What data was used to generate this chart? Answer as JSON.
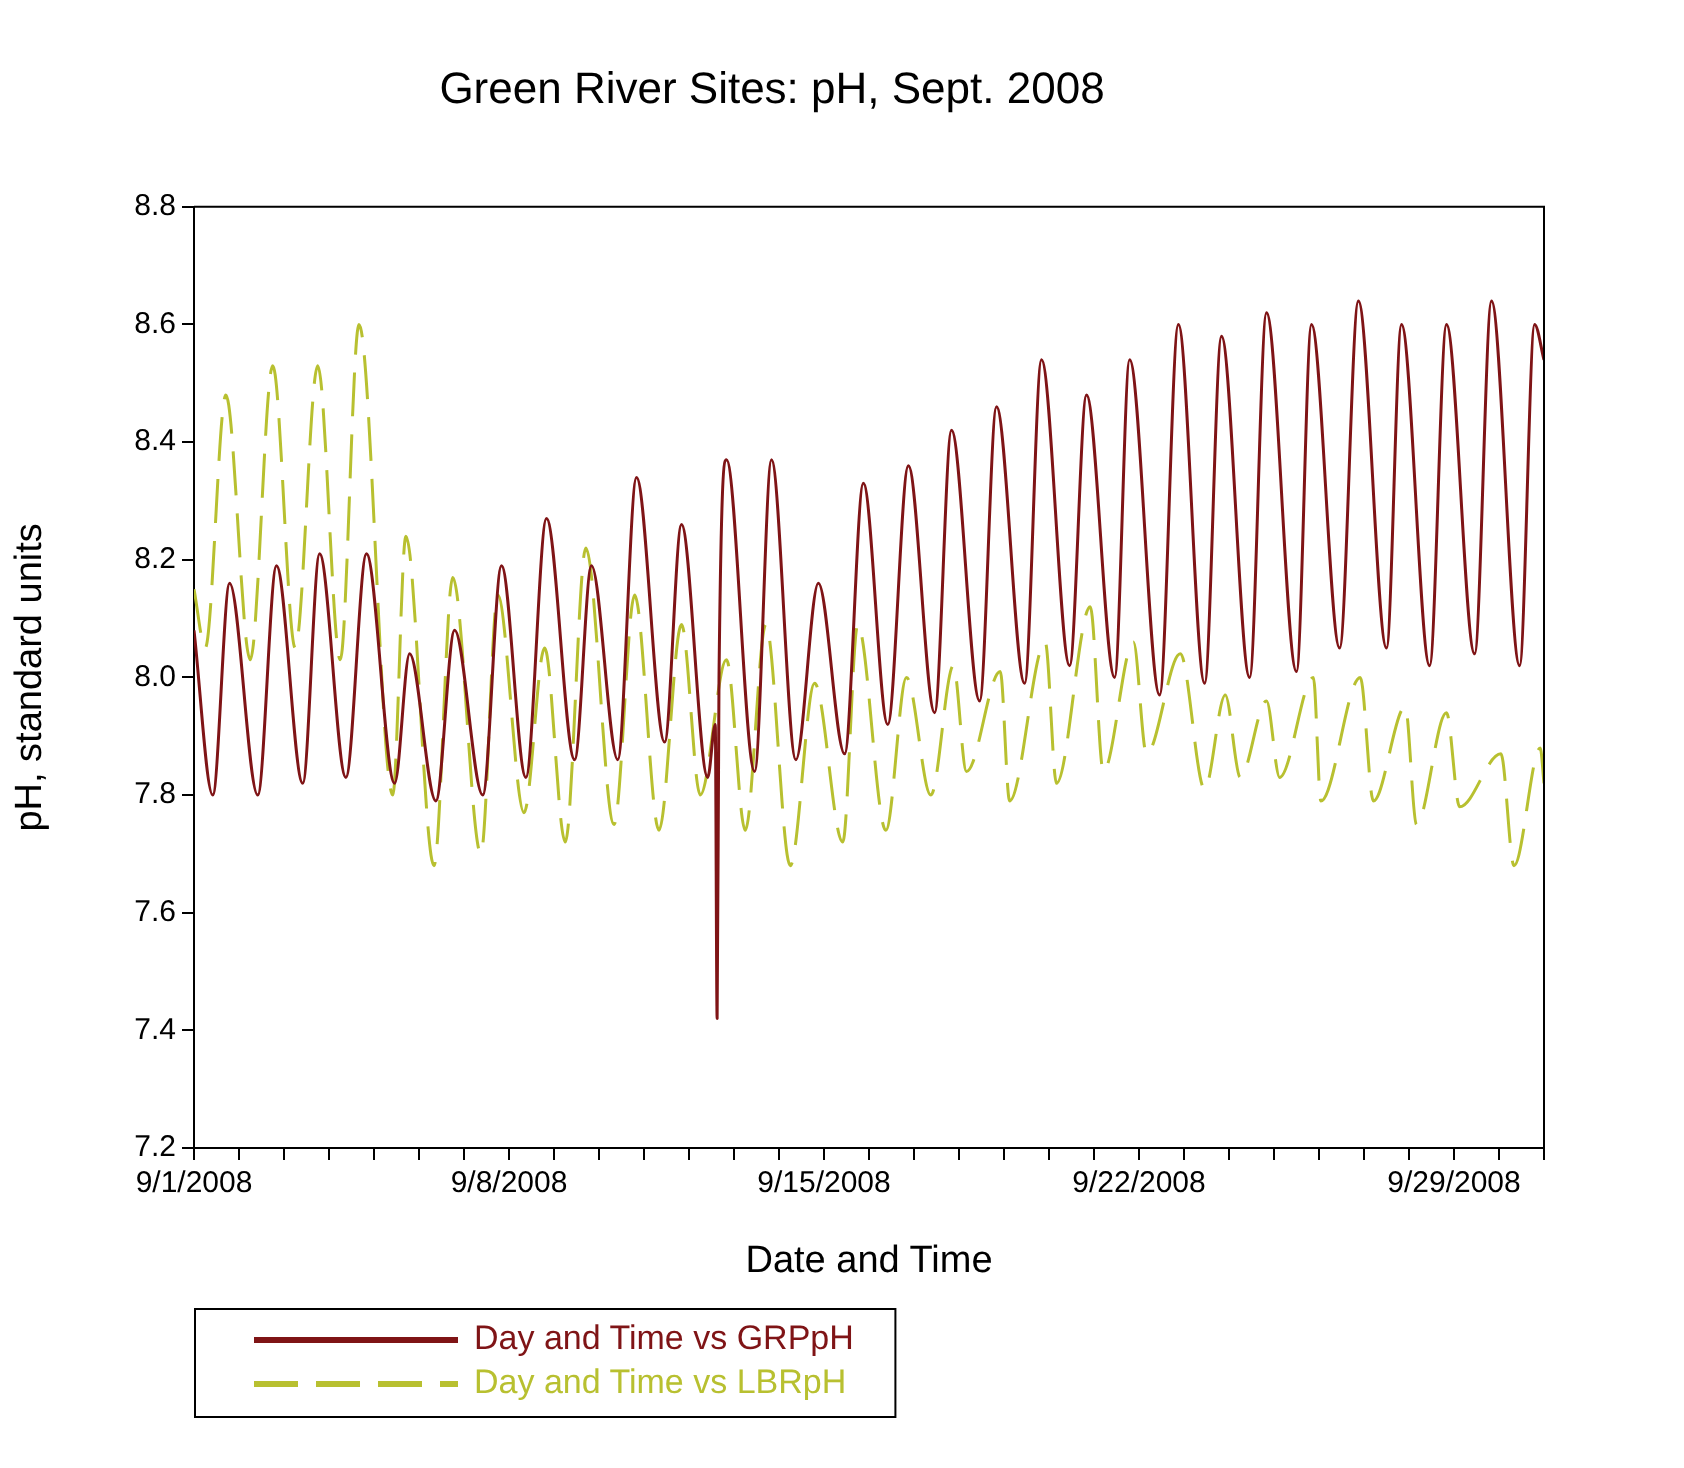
{
  "chart_data": {
    "type": "line",
    "title": "Green River Sites: pH, Sept. 2008",
    "xlabel": "Date and Time",
    "ylabel": "pH, standard units",
    "xlim": [
      "2008-09-01",
      "2008-10-01"
    ],
    "xticks": [
      {
        "value": "2008-09-01",
        "label": "9/1/2008"
      },
      {
        "value": "2008-09-02",
        "label": null
      },
      {
        "value": "2008-09-03",
        "label": null
      },
      {
        "value": "2008-09-04",
        "label": null
      },
      {
        "value": "2008-09-05",
        "label": null
      },
      {
        "value": "2008-09-06",
        "label": null
      },
      {
        "value": "2008-09-07",
        "label": null
      },
      {
        "value": "2008-09-08",
        "label": "9/8/2008"
      },
      {
        "value": "2008-09-09",
        "label": null
      },
      {
        "value": "2008-09-10",
        "label": null
      },
      {
        "value": "2008-09-11",
        "label": null
      },
      {
        "value": "2008-09-12",
        "label": null
      },
      {
        "value": "2008-09-13",
        "label": null
      },
      {
        "value": "2008-09-14",
        "label": null
      },
      {
        "value": "2008-09-15",
        "label": "9/15/2008"
      },
      {
        "value": "2008-09-16",
        "label": null
      },
      {
        "value": "2008-09-17",
        "label": null
      },
      {
        "value": "2008-09-18",
        "label": null
      },
      {
        "value": "2008-09-19",
        "label": null
      },
      {
        "value": "2008-09-20",
        "label": null
      },
      {
        "value": "2008-09-21",
        "label": null
      },
      {
        "value": "2008-09-22",
        "label": "9/22/2008"
      },
      {
        "value": "2008-09-23",
        "label": null
      },
      {
        "value": "2008-09-24",
        "label": null
      },
      {
        "value": "2008-09-25",
        "label": null
      },
      {
        "value": "2008-09-26",
        "label": null
      },
      {
        "value": "2008-09-27",
        "label": null
      },
      {
        "value": "2008-09-28",
        "label": null
      },
      {
        "value": "2008-09-29",
        "label": "9/29/2008"
      },
      {
        "value": "2008-09-30",
        "label": null
      },
      {
        "value": "2008-10-01",
        "label": null
      }
    ],
    "ylim": [
      7.2,
      8.8
    ],
    "yticks": [
      7.2,
      7.4,
      7.6,
      7.8,
      {
        "value": 8,
        "label": "8.0"
      },
      8.2,
      8.4,
      8.6,
      8.8
    ],
    "grid": false,
    "legend": "bottom left",
    "marker": "none",
    "series": [
      {
        "name": "Day and Time vs GRPpH",
        "color": "#7f1416",
        "line_style": "solid",
        "x": [
          "2008-09-01T00:00",
          "2008-09-01T10:00",
          "2008-09-01T19:00",
          "2008-09-02T10:00",
          "2008-09-02T20:00",
          "2008-09-03T10:00",
          "2008-09-03T19:00",
          "2008-09-04T09:00",
          "2008-09-04T20:00",
          "2008-09-05T11:00",
          "2008-09-05T19:00",
          "2008-09-06T09:00",
          "2008-09-06T19:00",
          "2008-09-07T10:00",
          "2008-09-07T20:00",
          "2008-09-08T09:00",
          "2008-09-08T20:00",
          "2008-09-09T11:00",
          "2008-09-09T20:00",
          "2008-09-10T10:00",
          "2008-09-10T20:00",
          "2008-09-11T11:00",
          "2008-09-11T20:00",
          "2008-09-12T10:00",
          "2008-09-12T14:00",
          "2008-09-12T15:00",
          "2008-09-12T16:00",
          "2008-09-12T20:00",
          "2008-09-13T11:00",
          "2008-09-13T20:00",
          "2008-09-14T09:00",
          "2008-09-14T21:00",
          "2008-09-15T11:00",
          "2008-09-15T21:00",
          "2008-09-16T10:00",
          "2008-09-16T21:00",
          "2008-09-17T11:00",
          "2008-09-17T20:00",
          "2008-09-18T11:00",
          "2008-09-18T20:00",
          "2008-09-19T11:00",
          "2008-09-19T20:00",
          "2008-09-20T11:00",
          "2008-09-20T20:00",
          "2008-09-21T11:00",
          "2008-09-21T19:00",
          "2008-09-22T11:00",
          "2008-09-22T21:00",
          "2008-09-23T11:00",
          "2008-09-23T20:00",
          "2008-09-24T11:00",
          "2008-09-24T20:00",
          "2008-09-25T12:00",
          "2008-09-25T20:00",
          "2008-09-26T11:00",
          "2008-09-26T21:00",
          "2008-09-27T12:00",
          "2008-09-27T20:00",
          "2008-09-28T11:00",
          "2008-09-28T20:00",
          "2008-09-29T11:00",
          "2008-09-29T20:00",
          "2008-09-30T11:00",
          "2008-09-30T19:00",
          "2008-10-01T00:00"
        ],
        "values": [
          8.08,
          7.8,
          8.16,
          7.8,
          8.19,
          7.82,
          8.21,
          7.83,
          8.21,
          7.82,
          8.04,
          7.79,
          8.08,
          7.8,
          8.19,
          7.83,
          8.27,
          7.86,
          8.19,
          7.86,
          8.34,
          7.89,
          8.26,
          7.83,
          7.92,
          7.42,
          8.0,
          8.37,
          7.84,
          8.37,
          7.86,
          8.16,
          7.87,
          8.33,
          7.92,
          8.36,
          7.94,
          8.42,
          7.96,
          8.46,
          7.99,
          8.54,
          8.02,
          8.48,
          8.0,
          8.54,
          7.97,
          8.6,
          7.99,
          8.58,
          8.0,
          8.62,
          8.01,
          8.6,
          8.05,
          8.64,
          8.05,
          8.6,
          8.02,
          8.6,
          8.04,
          8.64,
          8.02,
          8.6,
          8.54
        ]
      },
      {
        "name": "Day and Time vs LBRpH",
        "color": "#b8c030",
        "line_style": "dashed",
        "x": [
          "2008-09-01T00:00",
          "2008-09-01T06:00",
          "2008-09-01T17:00",
          "2008-09-02T06:00",
          "2008-09-02T18:00",
          "2008-09-03T06:00",
          "2008-09-03T18:00",
          "2008-09-04T06:00",
          "2008-09-04T16:00",
          "2008-09-05T10:00",
          "2008-09-05T17:00",
          "2008-09-06T08:00",
          "2008-09-06T18:00",
          "2008-09-07T09:00",
          "2008-09-07T18:00",
          "2008-09-08T08:00",
          "2008-09-08T19:00",
          "2008-09-09T06:00",
          "2008-09-09T17:00",
          "2008-09-10T08:00",
          "2008-09-10T19:00",
          "2008-09-11T08:00",
          "2008-09-11T20:00",
          "2008-09-12T06:00",
          "2008-09-12T20:00",
          "2008-09-13T06:00",
          "2008-09-13T17:00",
          "2008-09-14T06:00",
          "2008-09-14T19:00",
          "2008-09-15T10:00",
          "2008-09-15T18:00",
          "2008-09-16T09:00",
          "2008-09-16T20:00",
          "2008-09-17T09:00",
          "2008-09-17T21:00",
          "2008-09-18T04:00",
          "2008-09-18T22:00",
          "2008-09-19T03:00",
          "2008-09-19T22:00",
          "2008-09-20T04:00",
          "2008-09-20T22:00",
          "2008-09-21T05:00",
          "2008-09-21T21:00",
          "2008-09-22T04:00",
          "2008-09-22T22:00",
          "2008-09-23T11:00",
          "2008-09-23T22:00",
          "2008-09-24T06:00",
          "2008-09-24T20:00",
          "2008-09-25T03:00",
          "2008-09-25T21:00",
          "2008-09-26T01:00",
          "2008-09-26T22:00",
          "2008-09-27T05:00",
          "2008-09-27T22:00",
          "2008-09-28T04:00",
          "2008-09-28T20:00",
          "2008-09-29T03:00",
          "2008-09-30T01:00",
          "2008-09-30T08:00",
          "2008-09-30T22:00",
          "2008-10-01T00:00"
        ],
        "values": [
          8.15,
          8.05,
          8.48,
          8.03,
          8.53,
          8.05,
          8.53,
          8.03,
          8.6,
          7.8,
          8.24,
          7.68,
          8.17,
          7.7,
          8.14,
          7.77,
          8.05,
          7.72,
          8.22,
          7.75,
          8.14,
          7.74,
          8.09,
          7.8,
          8.03,
          7.74,
          8.09,
          7.68,
          7.99,
          7.72,
          8.09,
          7.74,
          8.0,
          7.8,
          8.02,
          7.84,
          8.01,
          7.79,
          8.06,
          7.82,
          8.12,
          7.84,
          8.06,
          7.87,
          8.04,
          7.81,
          7.97,
          7.83,
          7.96,
          7.83,
          8.0,
          7.79,
          8.0,
          7.79,
          7.95,
          7.75,
          7.94,
          7.78,
          7.87,
          7.68,
          7.88,
          7.82
        ]
      }
    ]
  }
}
